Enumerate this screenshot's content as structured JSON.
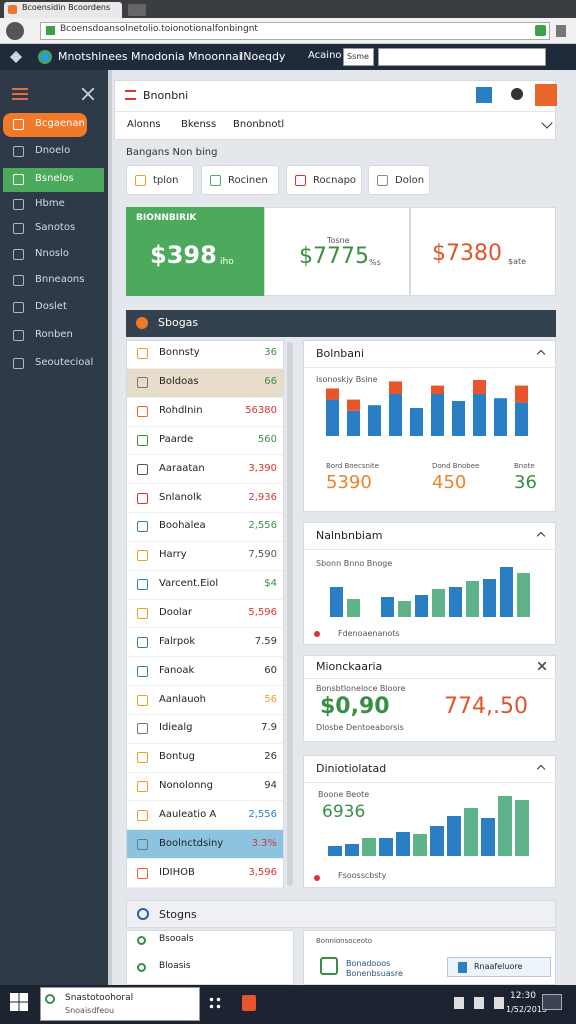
{
  "browser": {
    "tab": "Bcoensidin Bcoordens",
    "url": "Bcoensdoansolnetolio.toionotionalfonbingnt"
  },
  "topnav": {
    "brand": "Mnotshlnees Mnodonia Mnoonnai",
    "link": "INoeqdy",
    "account": "Acaino",
    "button": "Ssme"
  },
  "sidebar": {
    "items": [
      "Bcgaenan",
      "Dnoelo",
      "Bsnelos",
      "Hbme",
      "Sanotos",
      "Nnoslo",
      "Bnneaons",
      "Doslet",
      "Ronben",
      "Seoutecioal"
    ]
  },
  "header": {
    "title": "Bnonbni",
    "tabs": [
      "Alonns",
      "Bkenss",
      "Bnonbnotl"
    ]
  },
  "section_title": "Bangans Non bing",
  "buttons": [
    "tplon",
    "Rocinen",
    "Rocnapo",
    "Dolon"
  ],
  "stats": [
    {
      "label": "BIONNBIRIK",
      "value": "$398",
      "unit": "iho"
    },
    {
      "label": "Tosne",
      "value": "$7775",
      "unit": "%s"
    },
    {
      "value": "$7380",
      "unit": "$ate"
    }
  ],
  "panel": {
    "title": "Sbogas",
    "rows": [
      {
        "name": "Bonnsty",
        "value": "36"
      },
      {
        "name": "Boldoas",
        "value": "66"
      },
      {
        "name": "Rohdlnin",
        "value": "56380"
      },
      {
        "name": "Paarde",
        "value": "560"
      },
      {
        "name": "Aaraatan",
        "value": "3,390"
      },
      {
        "name": "Snlanolk",
        "value": "2,936"
      },
      {
        "name": "Boohalea",
        "value": "2,556"
      },
      {
        "name": "Harry",
        "value": "7,590"
      },
      {
        "name": "Varcent.Eiol",
        "value": "$4"
      },
      {
        "name": "Doolar",
        "value": "5,596"
      },
      {
        "name": "Falrpok",
        "value": "7.59"
      },
      {
        "name": "Fanoak",
        "value": "60"
      },
      {
        "name": "Aanlauoh",
        "value": "56"
      },
      {
        "name": "Idiealg",
        "value": "7.9"
      },
      {
        "name": "Bontug",
        "value": "26"
      },
      {
        "name": "Nonolonng",
        "value": "94"
      },
      {
        "name": "Aauleatio A",
        "value": "2,556"
      },
      {
        "name": "Boolnctdsiny",
        "value": "3.3%"
      },
      {
        "name": "IDIHOB",
        "value": "3,596"
      }
    ]
  },
  "cards": [
    {
      "title": "Bolnbani",
      "subtitle": "Isonoskjy Bsine",
      "bars_blue": [
        26,
        18,
        22,
        30,
        20,
        30,
        25,
        30,
        27,
        24
      ],
      "bars_red": [
        8,
        8,
        0,
        9,
        0,
        6,
        0,
        10,
        0,
        12
      ],
      "stats": [
        {
          "label": "Bord Bnecsnite",
          "value": "5390"
        },
        {
          "label": "Dond Bnobee",
          "value": "450"
        },
        {
          "label": "Bnote",
          "value": "36"
        }
      ]
    },
    {
      "title": "Nalnbnbiam",
      "subtitle": "Sbonn Bnno Bnoge",
      "bars": [
        30,
        18,
        0,
        20,
        16,
        22,
        28,
        30,
        36,
        38,
        50,
        44
      ],
      "footer": "Fdenoaenanots"
    },
    {
      "title": "Mionckaaria",
      "label": "Bonsbtloneloce Bloore",
      "value_a": "$0,90",
      "value_b": "774,.50",
      "footer": "Dlosbe Dentoeaborsis"
    },
    {
      "title": "Diniotiolatad",
      "subtitle": "Boone Beote",
      "value": "6936",
      "bars": [
        10,
        12,
        18,
        18,
        24,
        22,
        30,
        40,
        48,
        38,
        60,
        56
      ],
      "footer": "Fsoosscbsty"
    }
  ],
  "bottom": {
    "title": "Stogns",
    "rows": [
      "Bsooals",
      "Bloasis"
    ],
    "right_title": "Bonnionsoceoto",
    "right_text": "Bonadooos Bonenbsuasre",
    "button": "Rnaafeluore"
  },
  "taskbar": {
    "app": "Snastotoohoral",
    "app_sub": "Snoaisdfeou",
    "time": "12:30",
    "date": "1/52/2013"
  }
}
